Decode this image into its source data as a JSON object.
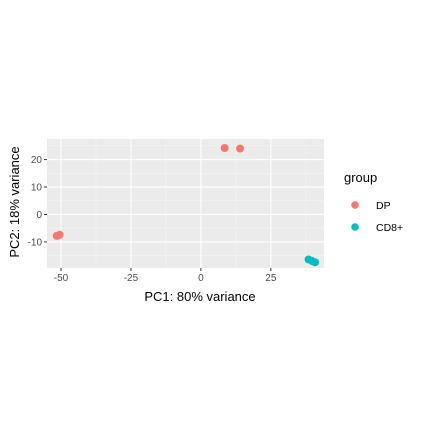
{
  "chart_data": {
    "type": "scatter",
    "xlabel": "PC1: 80% variance",
    "ylabel": "PC2: 18% variance",
    "xlim": [
      -55,
      44
    ],
    "ylim": [
      -19.5,
      27.5
    ],
    "x_ticks": [
      -50,
      -25,
      0,
      25
    ],
    "y_ticks": [
      -10,
      0,
      10,
      20
    ],
    "grid": true,
    "legend": {
      "title": "group",
      "position": "right"
    },
    "series": [
      {
        "name": "DP",
        "color": "#F8766D",
        "points": [
          {
            "x": -51.5,
            "y": -7.8
          },
          {
            "x": -50.5,
            "y": -7.4
          },
          {
            "x": 8.5,
            "y": 24.2
          },
          {
            "x": 14.0,
            "y": 24.0
          }
        ]
      },
      {
        "name": "CD8+",
        "color": "#00BFC4",
        "points": [
          {
            "x": 38.5,
            "y": -16.4
          },
          {
            "x": 39.8,
            "y": -17.0
          },
          {
            "x": 40.8,
            "y": -17.4
          }
        ]
      }
    ]
  }
}
